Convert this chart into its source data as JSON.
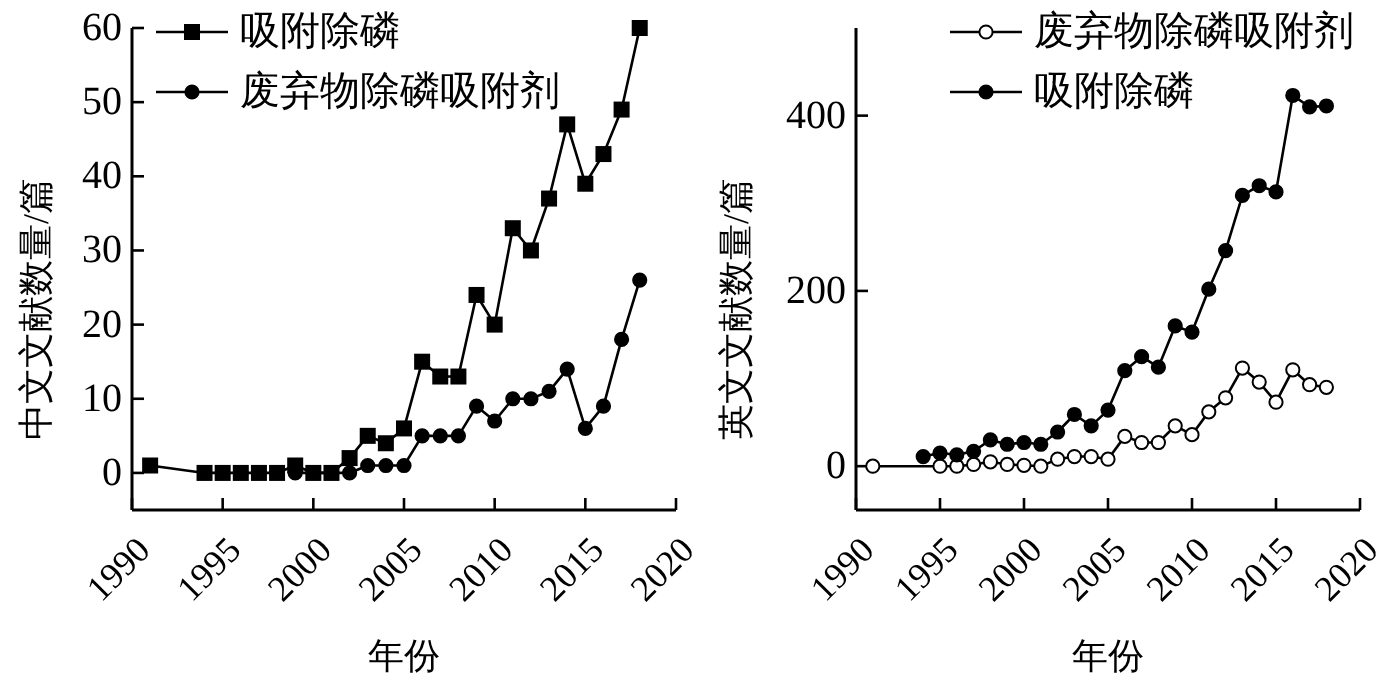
{
  "chart_data": [
    {
      "type": "line",
      "xlabel": "年份",
      "ylabel": "中文文献数量/篇",
      "xlim": [
        1990,
        2020
      ],
      "xticks": [
        1990,
        1995,
        2000,
        2005,
        2010,
        2015,
        2020
      ],
      "ylim": [
        -5,
        60
      ],
      "yticks": [
        0,
        10,
        20,
        30,
        40,
        50,
        60
      ],
      "grid": false,
      "legend": "top left",
      "series": [
        {
          "name": "吸附除磷",
          "color": "#000000",
          "marker": "square",
          "x": [
            1991,
            1994,
            1995,
            1996,
            1997,
            1998,
            1999,
            2000,
            2001,
            2002,
            2003,
            2004,
            2005,
            2006,
            2007,
            2008,
            2009,
            2010,
            2011,
            2012,
            2013,
            2014,
            2015,
            2016,
            2017,
            2018
          ],
          "values": [
            1,
            0,
            0,
            0,
            0,
            0,
            1,
            0,
            0,
            2,
            5,
            4,
            6,
            15,
            13,
            13,
            24,
            20,
            33,
            30,
            37,
            47,
            39,
            43,
            49,
            60
          ]
        },
        {
          "name": "废弃物除磷吸附剂",
          "color": "#000000",
          "marker": "circle",
          "x": [
            1999,
            2002,
            2003,
            2004,
            2005,
            2006,
            2007,
            2008,
            2009,
            2010,
            2011,
            2012,
            2013,
            2014,
            2015,
            2016,
            2017,
            2018
          ],
          "values": [
            0,
            0,
            1,
            1,
            1,
            5,
            5,
            5,
            9,
            7,
            10,
            10,
            11,
            14,
            6,
            9,
            18,
            26
          ]
        }
      ]
    },
    {
      "type": "line",
      "xlabel": "年份",
      "ylabel": "英文文献数量/篇",
      "xlim": [
        1990,
        2020
      ],
      "xticks": [
        1990,
        1995,
        2000,
        2005,
        2010,
        2015,
        2020
      ],
      "ylim": [
        -50,
        500
      ],
      "yticks": [
        0,
        200,
        400
      ],
      "grid": false,
      "legend": "top right",
      "series": [
        {
          "name": "废弃物除磷吸附剂",
          "color": "#ffffff",
          "marker": "circle",
          "x": [
            1991,
            1995,
            1996,
            1997,
            1998,
            1999,
            2000,
            2001,
            2002,
            2003,
            2004,
            2005,
            2006,
            2007,
            2008,
            2009,
            2010,
            2011,
            2012,
            2013,
            2014,
            2015,
            2016,
            2017,
            2018
          ],
          "values": [
            0,
            0,
            0,
            2,
            5,
            2,
            1,
            0,
            8,
            11,
            11,
            8,
            34,
            27,
            27,
            46,
            36,
            62,
            78,
            112,
            96,
            73,
            110,
            93,
            90
          ]
        },
        {
          "name": "吸附除磷",
          "color": "#000000",
          "marker": "circle",
          "x": [
            1994,
            1995,
            1996,
            1997,
            1998,
            1999,
            2000,
            2001,
            2002,
            2003,
            2004,
            2005,
            2006,
            2007,
            2008,
            2009,
            2010,
            2011,
            2012,
            2013,
            2014,
            2015,
            2016,
            2017,
            2018
          ],
          "values": [
            11,
            15,
            13,
            17,
            30,
            25,
            27,
            25,
            39,
            59,
            46,
            64,
            109,
            125,
            113,
            160,
            153,
            202,
            246,
            309,
            320,
            313,
            423,
            410,
            411
          ]
        }
      ]
    }
  ]
}
